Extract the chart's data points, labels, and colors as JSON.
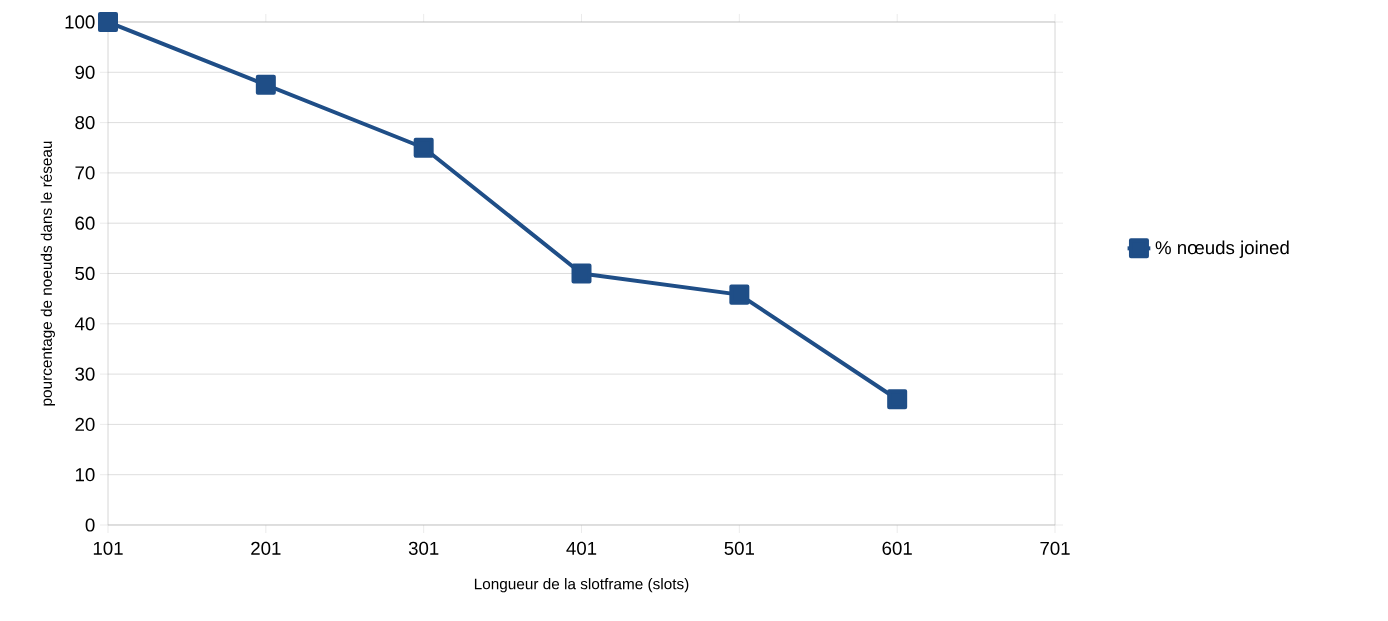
{
  "chart_data": {
    "type": "line",
    "xlabel": "Longueur de la slotframe (slots)",
    "ylabel": "pourcentage de noeuds dans le réseau",
    "x": [
      101,
      201,
      301,
      401,
      501,
      601
    ],
    "series": [
      {
        "name": "% nœuds joined",
        "color": "#1f4e87",
        "values": [
          100,
          87.5,
          75,
          50,
          45.8,
          25
        ]
      }
    ],
    "xlim": [
      101,
      701
    ],
    "xticks": [
      101,
      201,
      301,
      401,
      501,
      601,
      701
    ],
    "ylim": [
      0,
      100
    ],
    "yticks": [
      0,
      10,
      20,
      30,
      40,
      50,
      60,
      70,
      80,
      90,
      100
    ],
    "grid": "y",
    "legend": "right",
    "marker": "square",
    "line_style": "solid"
  }
}
